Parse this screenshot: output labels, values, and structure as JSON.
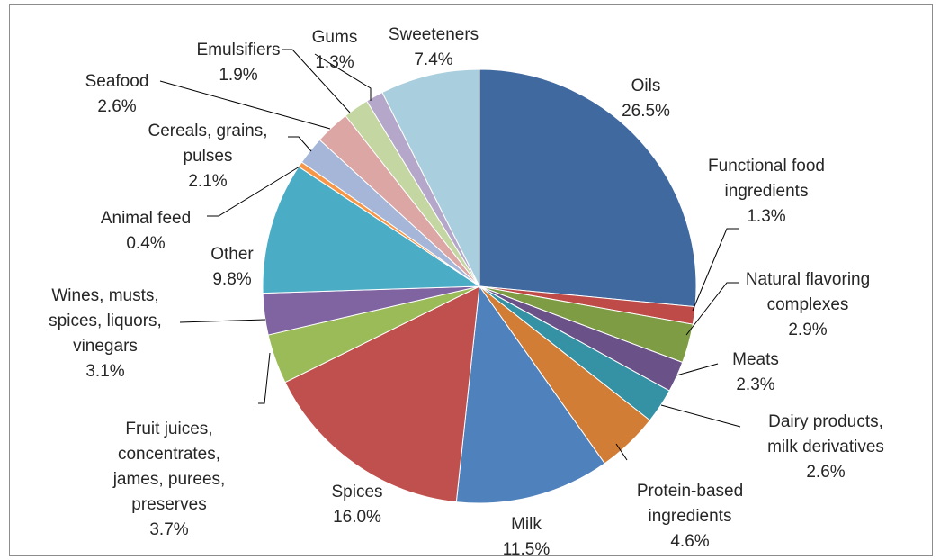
{
  "chart_data": {
    "type": "pie",
    "title": "",
    "slices": [
      {
        "label": [
          "Oils"
        ],
        "value": 26.5,
        "value_label": "26.5%",
        "color": "#4069A0"
      },
      {
        "label": [
          "Functional food",
          "ingredients"
        ],
        "value": 1.3,
        "value_label": "1.3%",
        "color": "#BE4B48"
      },
      {
        "label": [
          "Natural flavoring",
          "complexes"
        ],
        "value": 2.9,
        "value_label": "2.9%",
        "color": "#7E9C44"
      },
      {
        "label": [
          "Meats"
        ],
        "value": 2.3,
        "value_label": "2.3%",
        "color": "#6A5187"
      },
      {
        "label": [
          "Dairy products,",
          "milk derivatives"
        ],
        "value": 2.6,
        "value_label": "2.6%",
        "color": "#3592A5"
      },
      {
        "label": [
          "Protein-based",
          "ingredients"
        ],
        "value": 4.6,
        "value_label": "4.6%",
        "color": "#D27D35"
      },
      {
        "label": [
          "Milk"
        ],
        "value": 11.5,
        "value_label": "11.5%",
        "color": "#4F81BD"
      },
      {
        "label": [
          "Spices"
        ],
        "value": 16.0,
        "value_label": "16.0%",
        "color": "#C0504D"
      },
      {
        "label": [
          "Fruit juices,",
          "concentrates,",
          "james, purees,",
          "preserves"
        ],
        "value": 3.7,
        "value_label": "3.7%",
        "color": "#9BBB59"
      },
      {
        "label": [
          "Wines, musts,",
          "spices, liquors,",
          "vinegars"
        ],
        "value": 3.1,
        "value_label": "3.1%",
        "color": "#8064A2"
      },
      {
        "label": [
          "Other"
        ],
        "value": 9.8,
        "value_label": "9.8%",
        "color": "#4BACC6"
      },
      {
        "label": [
          "Animal feed"
        ],
        "value": 0.4,
        "value_label": "0.4%",
        "color": "#F79646"
      },
      {
        "label": [
          "Cereals, grains,",
          "pulses"
        ],
        "value": 2.1,
        "value_label": "2.1%",
        "color": "#A5B6D8"
      },
      {
        "label": [
          "Seafood"
        ],
        "value": 2.6,
        "value_label": "2.6%",
        "color": "#DCA6A4"
      },
      {
        "label": [
          "Emulsifiers"
        ],
        "value": 1.9,
        "value_label": "1.9%",
        "color": "#C4D6A2"
      },
      {
        "label": [
          "Gums"
        ],
        "value": 1.3,
        "value_label": "1.3%",
        "color": "#B5A7C9"
      },
      {
        "label": [
          "Sweeteners"
        ],
        "value": 7.4,
        "value_label": "7.4%",
        "color": "#A9CEDD"
      }
    ]
  }
}
